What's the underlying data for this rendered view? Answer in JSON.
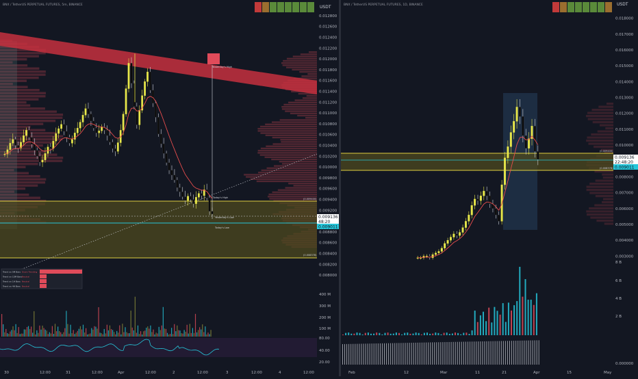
{
  "left_panel": {
    "symbol": "BNX / TetherUS PERPETUAL FUTURES, 5m, BINANCE",
    "currency": "USDT",
    "price_ticks": [
      "0.012800",
      "0.012600",
      "0.012400",
      "0.012200",
      "0.012000",
      "0.011800",
      "0.011600",
      "0.011400",
      "0.011200",
      "0.011000",
      "0.010800",
      "0.010600",
      "0.010400",
      "0.010200",
      "0.010000",
      "0.009800",
      "0.009600",
      "0.009400",
      "0.009200",
      "0.008800",
      "0.008600",
      "0.008400",
      "0.008200",
      "0.008000"
    ],
    "price_tags": [
      {
        "label": "0.009136",
        "sub": "48:20"
      },
      {
        "label": "0.009011"
      }
    ],
    "annotations": {
      "yesterday_high": "Yesterday's High",
      "today_high": "Today's High",
      "yesterdays_low": "Yesterday's Low",
      "today_low": "Today's Low"
    },
    "fib_labels": [
      "(0.009400)",
      "(0.008378)"
    ],
    "legend_rows": [
      {
        "name": "Trend on 5M Bars",
        "state": "Down Trending"
      },
      {
        "name": "Trend on 15M Bars",
        "state": "Neutral"
      },
      {
        "name": "Trend on 1H Bars",
        "state": "Neutral"
      },
      {
        "name": "Trend on 4H Bars",
        "state": "Neutral"
      }
    ],
    "volume_ticks": [
      "400 M",
      "300 M",
      "200 M",
      "100 M"
    ],
    "rsi_ticks": [
      "80.00",
      "40.00",
      "20.00"
    ],
    "time_labels": [
      "30",
      "12:00",
      "31",
      "12:00",
      "Apr",
      "12:00",
      "2",
      "12:00",
      "3",
      "12:00",
      "4",
      "12:00"
    ]
  },
  "right_panel": {
    "symbol": "BNX / TetherUS PERPETUAL FUTURES, 1D, BINANCE",
    "currency": "USDT",
    "price_ticks": [
      "0.018000",
      "0.017000",
      "0.016000",
      "0.015000",
      "0.014000",
      "0.013000",
      "0.012000",
      "0.011000",
      "0.010000",
      "0.008000",
      "0.007000",
      "0.006000",
      "0.005000",
      "0.004000",
      "0.003000"
    ],
    "price_tags": [
      {
        "label": "0.009136",
        "sub": "22:48:20"
      },
      {
        "label": "0.009011"
      }
    ],
    "fib_labels": [
      "(0.009400)",
      "(0.008378)"
    ],
    "volume_ticks": [
      "8 B",
      "6 B",
      "4 B",
      "2 B"
    ],
    "osc_ticks": [
      "0.000000"
    ],
    "time_labels": [
      "Feb",
      "12",
      "Mar",
      "11",
      "21",
      "Apr",
      "15",
      "May"
    ]
  },
  "colors": {
    "background": "#131722",
    "bull": "#e8e84a",
    "bear": "#0a0a0a",
    "resistance": "#c6303e",
    "zone_fill": "#4d4a1f",
    "zone_line": "#e0d040",
    "teal": "#26c6da",
    "ema": "#e84d4d",
    "profile": "#e04b5a",
    "tag_white": "#ffffff",
    "tag_teal": "#26c6da"
  },
  "chart_data": [
    {
      "type": "candlestick",
      "title": "BNX / TetherUS PERPETUAL FUTURES, 5m",
      "ylim": [
        0.0079,
        0.0129
      ],
      "close": [
        0.01024,
        0.01032,
        0.01044,
        0.01051,
        0.0104,
        0.01035,
        0.01046,
        0.01058,
        0.01068,
        0.01055,
        0.01042,
        0.01031,
        0.0102,
        0.01009,
        0.01013,
        0.01025,
        0.01037,
        0.01034,
        0.01048,
        0.01062,
        0.01071,
        0.01079,
        0.01066,
        0.01055,
        0.01044,
        0.01051,
        0.01063,
        0.01072,
        0.01083,
        0.01096,
        0.01108,
        0.01098,
        0.01085,
        0.01072,
        0.01063,
        0.01067,
        0.01074,
        0.01068,
        0.01058,
        0.01046,
        0.01034,
        0.01029,
        0.01045,
        0.01068,
        0.01098,
        0.01145,
        0.01192,
        0.01155,
        0.01112,
        0.01078,
        0.01105,
        0.01132,
        0.01158,
        0.01176,
        0.01142,
        0.01118,
        0.01092,
        0.01061,
        0.01043,
        0.01025,
        0.01008,
        0.00994,
        0.00985,
        0.00976,
        0.00962,
        0.00954,
        0.00945,
        0.00938,
        0.00946,
        0.0094,
        0.00932,
        0.00944,
        0.00951,
        0.00947,
        0.00958,
        0.00943,
        0.00918,
        0.00913
      ],
      "ema_fraction_visible": 1
    },
    {
      "type": "candlestick",
      "title": "BNX / TetherUS PERPETUAL FUTURES, 1D",
      "ylim": [
        0.0025,
        0.0185
      ],
      "close": [
        0.0029,
        0.0029,
        0.003,
        0.003,
        0.0029,
        0.0031,
        0.0032,
        0.0033,
        0.0035,
        0.0038,
        0.004,
        0.0042,
        0.0044,
        0.0043,
        0.0045,
        0.0048,
        0.0052,
        0.0056,
        0.0062,
        0.0066,
        0.0065,
        0.0068,
        0.0071,
        0.0068,
        0.0063,
        0.006,
        0.0056,
        0.0052,
        0.0075,
        0.0092,
        0.0099,
        0.0108,
        0.0115,
        0.0124,
        0.0118,
        0.0106,
        0.0098,
        0.0104,
        0.0112,
        0.0096,
        0.0091
      ]
    }
  ]
}
